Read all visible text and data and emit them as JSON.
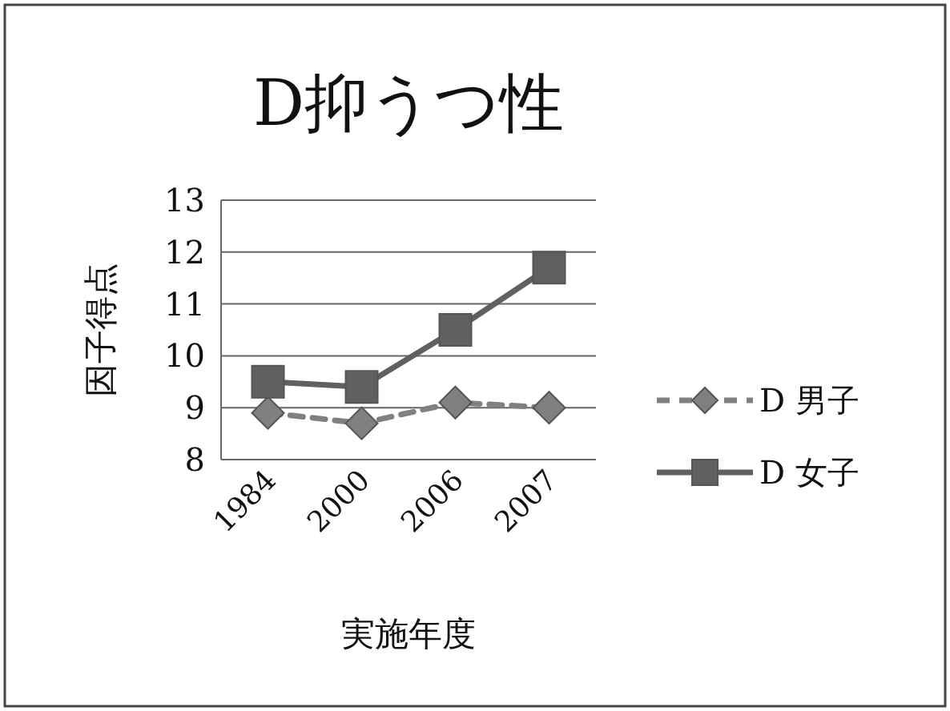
{
  "chart_data": {
    "type": "line",
    "title": "D抑うつ性",
    "xlabel": "実施年度",
    "ylabel": "因子得点",
    "categories": [
      "1984",
      "2000",
      "2006",
      "2007"
    ],
    "series": [
      {
        "name": "D 男子",
        "color": "#808080",
        "values": [
          8.9,
          8.7,
          9.1,
          9.0
        ],
        "marker": "diamond",
        "line_style": "dashed"
      },
      {
        "name": "D 女子",
        "color": "#606060",
        "values": [
          9.5,
          9.4,
          10.5,
          11.7
        ],
        "marker": "square",
        "line_style": "solid"
      }
    ],
    "ylim": [
      8,
      13
    ],
    "yticks": [
      8,
      9,
      10,
      11,
      12,
      13
    ],
    "grid": "y",
    "legend": "right"
  }
}
